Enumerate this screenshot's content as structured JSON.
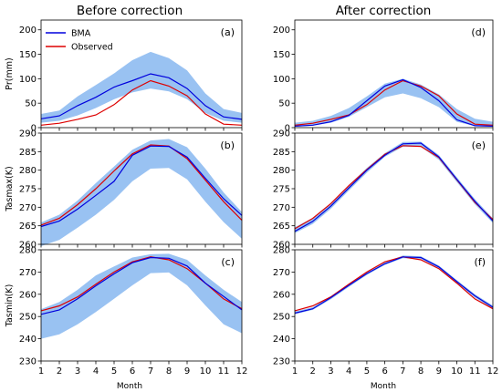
{
  "column_titles": [
    "Before correction",
    "After correction"
  ],
  "xlabel": "Month",
  "legend": {
    "bma": "BMA",
    "observed": "Observed",
    "placement": "upper-left, panel (a)"
  },
  "colors": {
    "bma": "#0000dd",
    "observed": "#dd0000",
    "band": "#99c2f2"
  },
  "chart_data": [
    {
      "type": "line",
      "id": "a",
      "label": "(a)",
      "ylabel": "Pr(mm)",
      "ylim": [
        0,
        220
      ],
      "yticks": [
        0,
        50,
        100,
        150,
        200
      ],
      "x": [
        1,
        2,
        3,
        4,
        5,
        6,
        7,
        8,
        9,
        10,
        11,
        12
      ],
      "series": [
        {
          "name": "BMA",
          "values": [
            18,
            24,
            45,
            62,
            83,
            96,
            110,
            102,
            80,
            45,
            22,
            17
          ]
        },
        {
          "name": "Observed",
          "values": [
            5,
            9,
            17,
            26,
            47,
            77,
            96,
            85,
            65,
            28,
            7,
            5
          ]
        }
      ],
      "band": {
        "lower": [
          10,
          14,
          25,
          40,
          58,
          72,
          80,
          74,
          58,
          30,
          14,
          10
        ],
        "upper": [
          28,
          35,
          64,
          87,
          111,
          138,
          155,
          142,
          117,
          70,
          38,
          30
        ]
      }
    },
    {
      "type": "line",
      "id": "d",
      "label": "(d)",
      "ylabel": "",
      "ylim": [
        0,
        220
      ],
      "yticks": [
        0,
        50,
        100,
        150,
        200
      ],
      "x": [
        1,
        2,
        3,
        4,
        5,
        6,
        7,
        8,
        9,
        10,
        11,
        12
      ],
      "series": [
        {
          "name": "BMA",
          "values": [
            3,
            5,
            12,
            25,
            55,
            85,
            98,
            82,
            55,
            16,
            4,
            3
          ]
        },
        {
          "name": "Observed",
          "values": [
            5,
            9,
            17,
            26,
            47,
            77,
            96,
            85,
            65,
            28,
            7,
            5
          ]
        }
      ],
      "band": {
        "lower": [
          2,
          4,
          10,
          22,
          42,
          62,
          70,
          60,
          42,
          12,
          3,
          2
        ],
        "upper": [
          10,
          14,
          24,
          40,
          64,
          90,
          100,
          88,
          68,
          38,
          18,
          12
        ]
      }
    },
    {
      "type": "line",
      "id": "b",
      "label": "(b)",
      "ylabel": "Tasmax(K)",
      "ylim": [
        260,
        290
      ],
      "yticks": [
        260,
        265,
        270,
        275,
        280,
        285,
        290
      ],
      "x": [
        1,
        2,
        3,
        4,
        5,
        6,
        7,
        8,
        9,
        10,
        11,
        12
      ],
      "series": [
        {
          "name": "BMA",
          "values": [
            264.8,
            266.3,
            269.5,
            273.2,
            277,
            284,
            286.5,
            286.4,
            283.5,
            277.8,
            272.3,
            267.8
          ]
        },
        {
          "name": "Observed",
          "values": [
            265.2,
            267,
            270.7,
            275,
            279.8,
            284.4,
            286.8,
            286.5,
            283.1,
            277.3,
            271.5,
            266.5
          ]
        }
      ],
      "band": {
        "lower": [
          259.5,
          261.2,
          264.5,
          268,
          272,
          277,
          280.4,
          280.6,
          277.5,
          271.5,
          266,
          261.5
        ],
        "upper": [
          265.9,
          268,
          271.8,
          276.5,
          281,
          285.5,
          288,
          288.4,
          286.2,
          280.4,
          274,
          268.7
        ]
      }
    },
    {
      "type": "line",
      "id": "e",
      "label": "(e)",
      "ylabel": "",
      "ylim": [
        260,
        290
      ],
      "yticks": [
        260,
        265,
        270,
        275,
        280,
        285,
        290
      ],
      "x": [
        1,
        2,
        3,
        4,
        5,
        6,
        7,
        8,
        9,
        10,
        11,
        12
      ],
      "series": [
        {
          "name": "BMA",
          "values": [
            263.5,
            266.2,
            270.3,
            275.2,
            280,
            284,
            287.1,
            287.3,
            283.6,
            277.5,
            271.6,
            266.3
          ]
        },
        {
          "name": "Observed",
          "values": [
            264.2,
            267,
            271,
            275.8,
            280.2,
            284.3,
            286.6,
            286.4,
            283.4,
            277.4,
            271.3,
            266.7
          ]
        }
      ],
      "band": {
        "lower": [
          263,
          265.5,
          269.6,
          274.5,
          279.3,
          283.6,
          286.3,
          286.3,
          282.8,
          276.8,
          270.8,
          265.7
        ],
        "upper": [
          264.6,
          267.1,
          271.1,
          276,
          280.6,
          284.6,
          287.6,
          287.7,
          284.1,
          278.1,
          272.2,
          267
        ]
      }
    },
    {
      "type": "line",
      "id": "c",
      "label": "(c)",
      "ylabel": "Tasmin(K)",
      "ylim": [
        230,
        280
      ],
      "yticks": [
        230,
        240,
        250,
        260,
        270,
        280
      ],
      "x": [
        1,
        2,
        3,
        4,
        5,
        6,
        7,
        8,
        9,
        10,
        11,
        12
      ],
      "series": [
        {
          "name": "BMA",
          "values": [
            251,
            253,
            258,
            263.8,
            269.2,
            274.2,
            276.5,
            276.2,
            272.7,
            265,
            259,
            253
          ]
        },
        {
          "name": "Observed",
          "values": [
            252.6,
            254.8,
            258.8,
            264.5,
            270,
            274.6,
            276.8,
            275.5,
            271.5,
            265,
            257.9,
            253.5
          ]
        }
      ],
      "band": {
        "lower": [
          240,
          242,
          246.5,
          252,
          258,
          264,
          269.5,
          269.8,
          264,
          255,
          246.5,
          242.5
        ],
        "upper": [
          253.3,
          256.5,
          262,
          268.5,
          272.5,
          276.5,
          278,
          278.2,
          275.5,
          268.5,
          262,
          256.5
        ]
      }
    },
    {
      "type": "line",
      "id": "f",
      "label": "(f)",
      "ylabel": "",
      "ylim": [
        230,
        280
      ],
      "yticks": [
        230,
        240,
        250,
        260,
        270,
        280
      ],
      "x": [
        1,
        2,
        3,
        4,
        5,
        6,
        7,
        8,
        9,
        10,
        11,
        12
      ],
      "series": [
        {
          "name": "BMA",
          "values": [
            251.5,
            253.5,
            258.5,
            264,
            269.3,
            273.7,
            276.8,
            276.5,
            272.3,
            265.7,
            259.3,
            254.2
          ]
        },
        {
          "name": "Observed",
          "values": [
            252.6,
            254.8,
            258.8,
            264.5,
            270,
            274.6,
            276.8,
            275.5,
            271.5,
            265,
            257.9,
            253.5
          ]
        }
      ],
      "band": {
        "lower": [
          251,
          253,
          257.8,
          263.3,
          268.7,
          273.2,
          276.2,
          275.9,
          271.7,
          265,
          258.5,
          253.5
        ],
        "upper": [
          252.2,
          254.2,
          259.2,
          264.7,
          269.9,
          274.3,
          277.4,
          277.1,
          272.9,
          266.4,
          260,
          254.9
        ]
      }
    }
  ]
}
